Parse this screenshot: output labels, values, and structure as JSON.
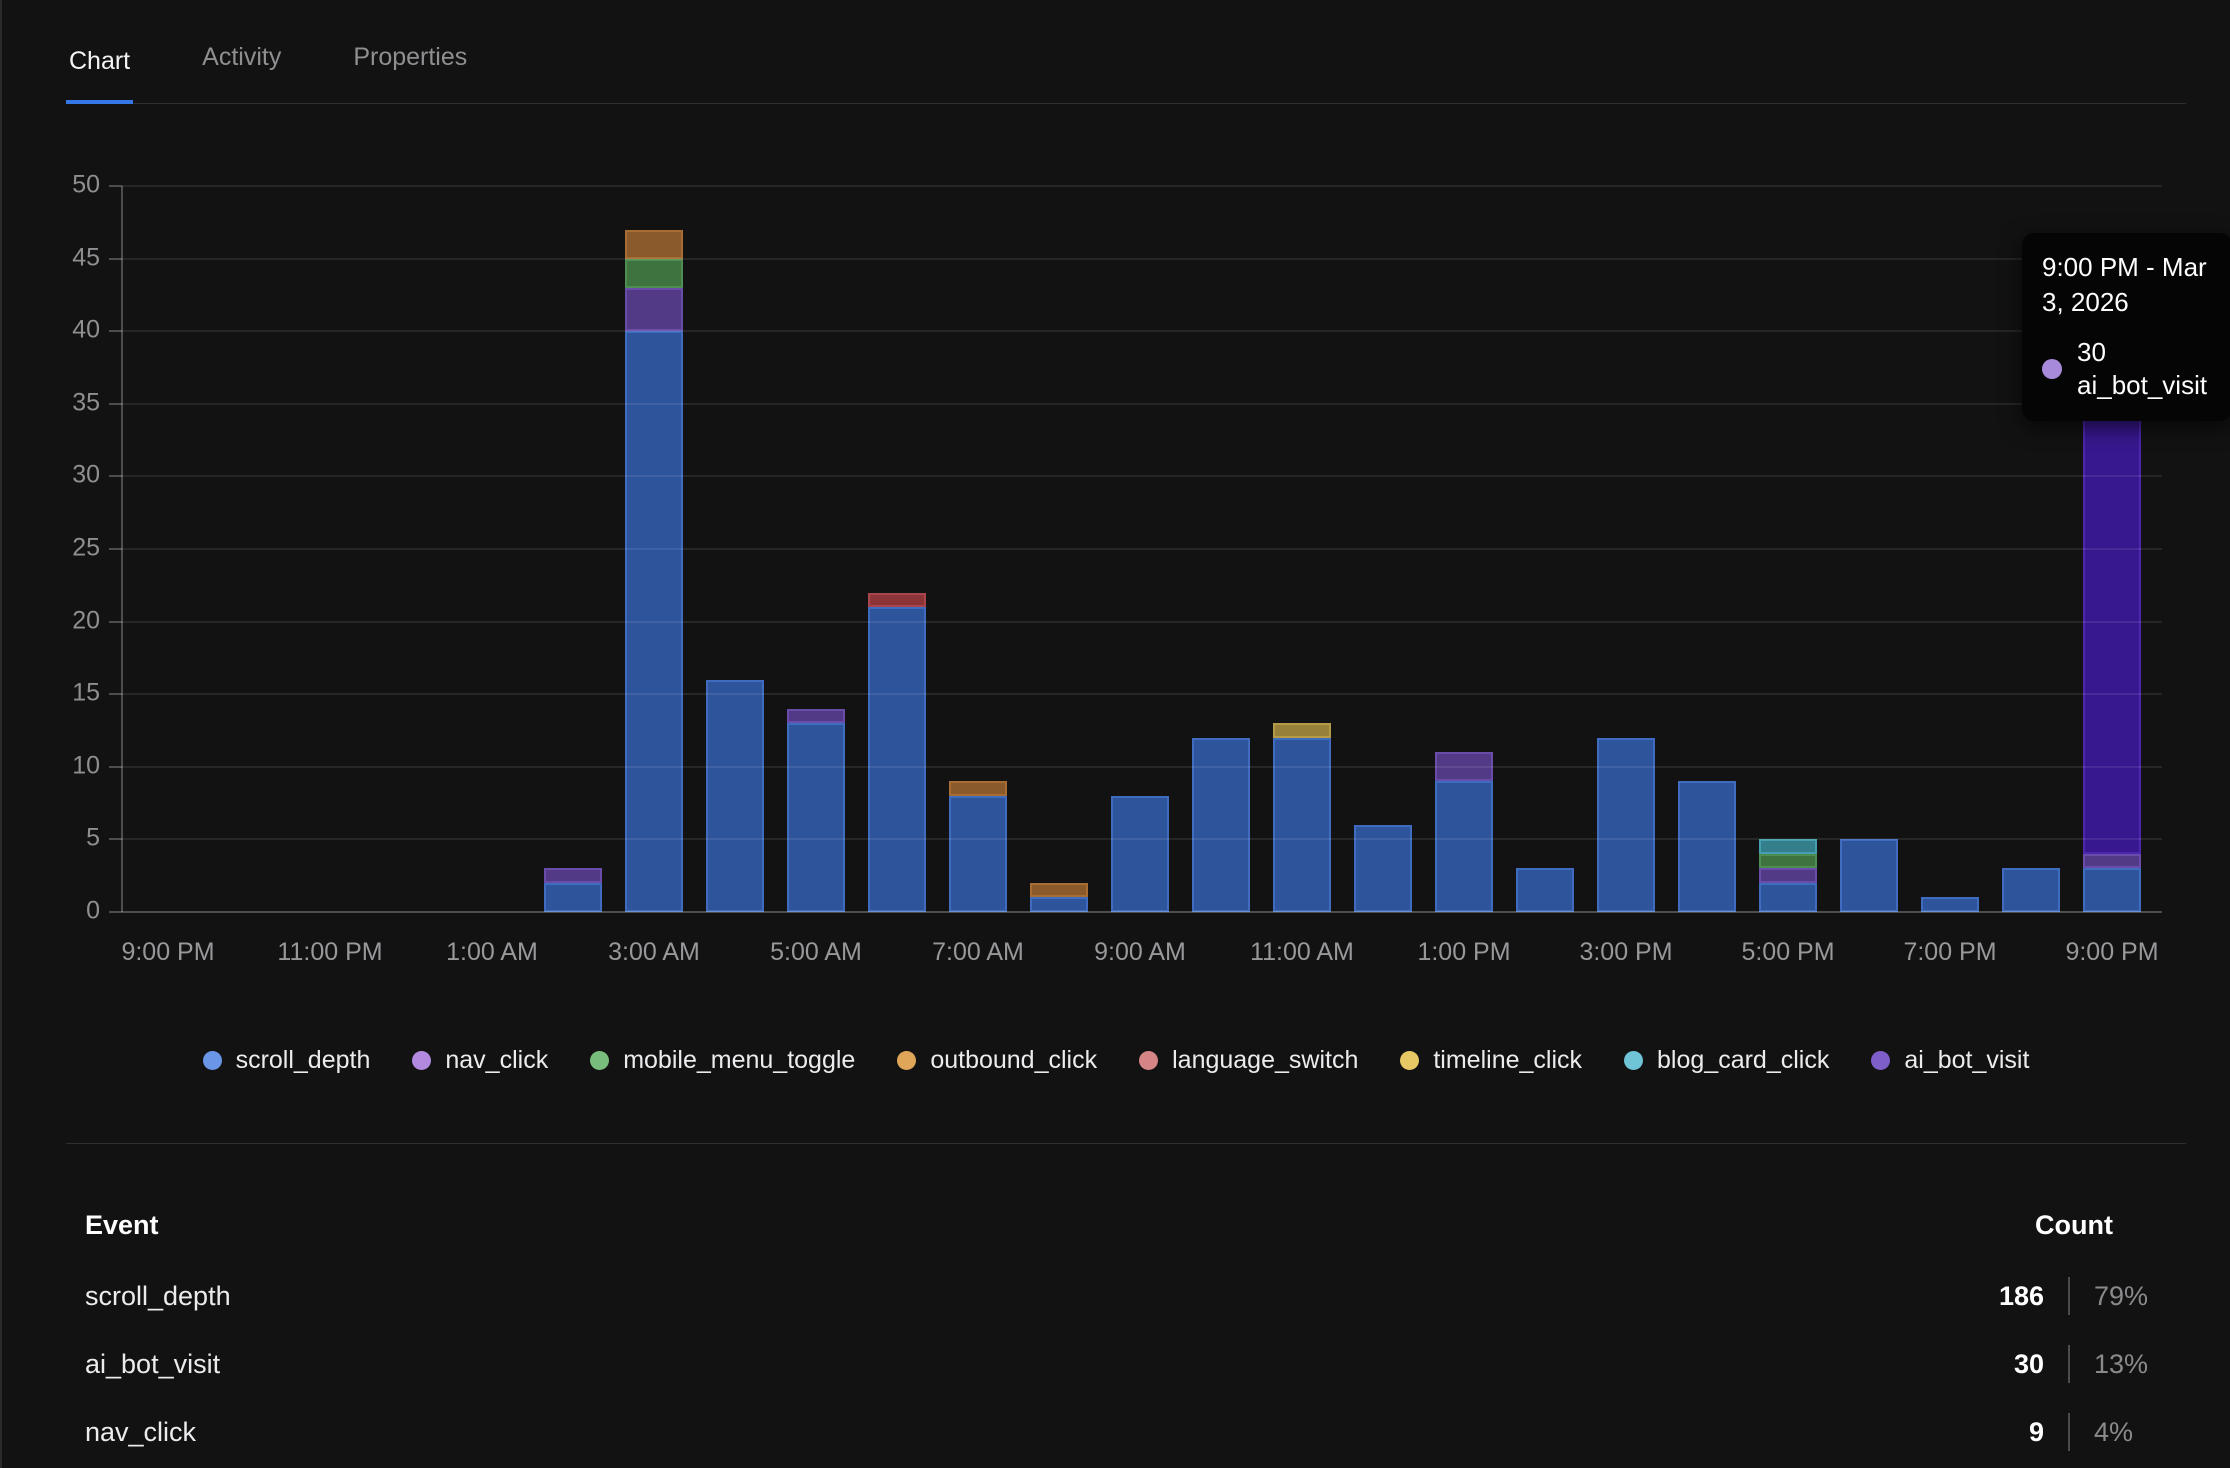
{
  "tabs": {
    "items": [
      {
        "label": "Chart",
        "active": true
      },
      {
        "label": "Activity",
        "active": false
      },
      {
        "label": "Properties",
        "active": false
      }
    ],
    "active_underline_color": "#3478e8"
  },
  "tooltip": {
    "date": "9:00 PM - Mar 3, 2026",
    "value": "30",
    "series": "ai_bot_visit",
    "dot_color": "#a78bda"
  },
  "chart_data": {
    "type": "bar",
    "stacked": true,
    "title": "",
    "xlabel": "",
    "ylabel": "",
    "ylim": [
      0,
      50
    ],
    "y_ticks": [
      0,
      5,
      10,
      15,
      20,
      25,
      30,
      35,
      40,
      45,
      50
    ],
    "grid": true,
    "legend_position": "bottom",
    "x_slot_count": 25,
    "x_slots_are_hours": "9:00 PM through 9:00 PM next day, hourly",
    "x_tick_labels": [
      "9:00 PM",
      "11:00 PM",
      "1:00 AM",
      "3:00 AM",
      "5:00 AM",
      "7:00 AM",
      "9:00 AM",
      "11:00 AM",
      "1:00 PM",
      "3:00 PM",
      "5:00 PM",
      "7:00 PM",
      "9:00 PM"
    ],
    "series": [
      {
        "name": "scroll_depth",
        "legend_color": "#6b96e8",
        "fill": "#2e549c",
        "border": "#3f6cbe",
        "values": [
          0,
          0,
          0,
          0,
          0,
          2,
          40,
          16,
          13,
          21,
          8,
          1,
          8,
          12,
          12,
          6,
          9,
          3,
          12,
          9,
          2,
          5,
          1,
          3,
          3
        ]
      },
      {
        "name": "nav_click",
        "legend_color": "#b18ae0",
        "fill": "#533a86",
        "border": "#6a4cab",
        "values": [
          0,
          0,
          0,
          0,
          0,
          1,
          3,
          0,
          1,
          0,
          0,
          0,
          0,
          0,
          0,
          0,
          2,
          0,
          0,
          0,
          1,
          0,
          0,
          0,
          1
        ]
      },
      {
        "name": "mobile_menu_toggle",
        "legend_color": "#79bd7c",
        "fill": "#3e7340",
        "border": "#4f8e52",
        "values": [
          0,
          0,
          0,
          0,
          0,
          0,
          2,
          0,
          0,
          0,
          0,
          0,
          0,
          0,
          0,
          0,
          0,
          0,
          0,
          0,
          1,
          0,
          0,
          0,
          0
        ]
      },
      {
        "name": "outbound_click",
        "legend_color": "#dfa558",
        "fill": "#8a5a2a",
        "border": "#a76d33",
        "values": [
          0,
          0,
          0,
          0,
          0,
          0,
          2,
          0,
          0,
          0,
          1,
          1,
          0,
          0,
          0,
          0,
          0,
          0,
          0,
          0,
          0,
          0,
          0,
          0,
          0
        ]
      },
      {
        "name": "language_switch",
        "legend_color": "#d58585",
        "fill": "#8d3439",
        "border": "#a9454c",
        "values": [
          0,
          0,
          0,
          0,
          0,
          0,
          0,
          0,
          0,
          1,
          0,
          0,
          0,
          0,
          0,
          0,
          0,
          0,
          0,
          0,
          0,
          0,
          0,
          0,
          0
        ]
      },
      {
        "name": "timeline_click",
        "legend_color": "#e7c865",
        "fill": "#97803a",
        "border": "#b59a48",
        "values": [
          0,
          0,
          0,
          0,
          0,
          0,
          0,
          0,
          0,
          0,
          0,
          0,
          0,
          0,
          1,
          0,
          0,
          0,
          0,
          0,
          0,
          0,
          0,
          0,
          0
        ]
      },
      {
        "name": "blog_card_click",
        "legend_color": "#6fc4d6",
        "fill": "#357f8d",
        "border": "#44a0b0",
        "values": [
          0,
          0,
          0,
          0,
          0,
          0,
          0,
          0,
          0,
          0,
          0,
          0,
          0,
          0,
          0,
          0,
          0,
          0,
          0,
          0,
          1,
          0,
          0,
          0,
          0
        ]
      },
      {
        "name": "ai_bot_visit",
        "legend_color": "#7e5fc9",
        "fill": "#38188f",
        "border": "#4b27ae",
        "values": [
          0,
          0,
          0,
          0,
          0,
          0,
          0,
          0,
          0,
          0,
          0,
          0,
          0,
          0,
          0,
          0,
          0,
          0,
          0,
          0,
          0,
          0,
          0,
          0,
          30
        ]
      }
    ]
  },
  "table": {
    "headers": [
      "Event",
      "Count"
    ],
    "rows": [
      {
        "event": "scroll_depth",
        "count": "186",
        "percent": "79%"
      },
      {
        "event": "ai_bot_visit",
        "count": "30",
        "percent": "13%"
      },
      {
        "event": "nav_click",
        "count": "9",
        "percent": "4%"
      }
    ]
  }
}
